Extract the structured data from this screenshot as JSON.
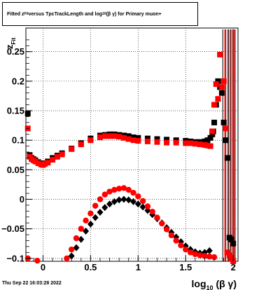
{
  "chart_data": {
    "type": "scatter",
    "title": "Fitted  z_Fit  versus TpcTrackLength and log_10(β γ) for Primary muon+",
    "title_parts": {
      "p1": "Fitted  z",
      "sub1": "Fit",
      "p2": "  versus TpcTrackLength and log",
      "sub2": "10",
      "p3": " (β  γ) for Primary muon+"
    },
    "xlabel": "log_10(β γ)",
    "xlabel_parts": {
      "base": "log",
      "sub": "10",
      "rest": " (β γ)"
    },
    "ylabel": "z_Fit",
    "ylabel_parts": {
      "base": "z",
      "sub": "Fit"
    },
    "xlim": [
      -0.18,
      2.05
    ],
    "ylim": [
      -0.105,
      0.29
    ],
    "xticks": [
      0,
      0.5,
      1,
      1.5,
      2
    ],
    "xtick_labels": [
      "0",
      "0.5",
      "1",
      "1.5",
      "2"
    ],
    "yticks": [
      -0.1,
      -0.05,
      0,
      0.05,
      0.1,
      0.15,
      0.2,
      0.25
    ],
    "ytick_labels": [
      "−0.1",
      "−0.05",
      "0",
      "0.05",
      "0.1",
      "0.15",
      "0.2",
      "0.25"
    ],
    "grid": true,
    "colors": {
      "black_series": "#000000",
      "red_series": "#ff0000"
    },
    "series": [
      {
        "color": "black",
        "upper_band": {
          "x": [
            -0.16,
            -0.14,
            -0.12,
            -0.1,
            -0.08,
            -0.05,
            -0.02,
            0.0,
            0.02,
            0.05,
            0.1,
            0.15,
            0.2,
            0.3,
            0.4,
            0.5,
            0.6,
            0.65,
            0.7,
            0.75,
            0.8,
            0.85,
            0.9,
            0.95,
            1.0,
            1.1,
            1.2,
            1.3,
            1.4,
            1.5,
            1.55,
            1.6,
            1.65,
            1.7,
            1.73,
            1.76,
            1.78,
            1.79
          ],
          "y": [
            0.145,
            0.075,
            0.07,
            0.068,
            0.066,
            0.063,
            0.061,
            0.06,
            0.061,
            0.064,
            0.07,
            0.074,
            0.078,
            0.086,
            0.095,
            0.103,
            0.108,
            0.109,
            0.11,
            0.11,
            0.109,
            0.108,
            0.107,
            0.105,
            0.104,
            0.103,
            0.102,
            0.101,
            0.1,
            0.099,
            0.098,
            0.097,
            0.097,
            0.098,
            0.1,
            0.104,
            0.11,
            0.115
          ]
        },
        "lower_band": {
          "x": [
            0.3,
            0.35,
            0.4,
            0.45,
            0.5,
            0.55,
            0.6,
            0.65,
            0.7,
            0.75,
            0.8,
            0.85,
            0.9,
            0.95,
            1.0,
            1.05,
            1.1,
            1.15,
            1.2,
            1.25,
            1.3,
            1.35,
            1.4,
            1.45,
            1.5,
            1.55,
            1.6,
            1.65,
            1.7,
            1.75
          ],
          "y": [
            -0.096,
            -0.082,
            -0.068,
            -0.054,
            -0.042,
            -0.031,
            -0.022,
            -0.014,
            -0.008,
            -0.004,
            -0.001,
            0.0,
            -0.001,
            -0.004,
            -0.008,
            -0.013,
            -0.019,
            -0.026,
            -0.033,
            -0.04,
            -0.048,
            -0.056,
            -0.064,
            -0.072,
            -0.079,
            -0.085,
            -0.089,
            -0.091,
            -0.09,
            -0.087
          ]
        },
        "tail": {
          "x": [
            1.78,
            1.8,
            1.82,
            1.84,
            1.86,
            1.88,
            1.9,
            1.92,
            1.94,
            1.96,
            1.98,
            2.0
          ],
          "y": [
            0.115,
            0.13,
            0.16,
            0.2,
            0.19,
            0.18,
            0.13,
            0.1,
            0.07,
            -0.065,
            -0.068,
            -0.075
          ]
        }
      },
      {
        "color": "red",
        "upper_band": {
          "x": [
            -0.16,
            -0.14,
            -0.12,
            -0.1,
            -0.08,
            -0.05,
            -0.02,
            0.0,
            0.02,
            0.05,
            0.1,
            0.15,
            0.2,
            0.3,
            0.4,
            0.5,
            0.6,
            0.65,
            0.7,
            0.75,
            0.8,
            0.85,
            0.9,
            0.95,
            1.0,
            1.1,
            1.2,
            1.3,
            1.4,
            1.5,
            1.55,
            1.6,
            1.65,
            1.7,
            1.73,
            1.76
          ],
          "y": [
            0.12,
            0.072,
            0.068,
            0.066,
            0.064,
            0.061,
            0.059,
            0.058,
            0.06,
            0.062,
            0.067,
            0.072,
            0.076,
            0.085,
            0.093,
            0.1,
            0.105,
            0.107,
            0.107,
            0.107,
            0.106,
            0.104,
            0.102,
            0.1,
            0.099,
            0.098,
            0.097,
            0.096,
            0.096,
            0.095,
            0.095,
            0.094,
            0.093,
            0.092,
            0.091,
            0.09
          ]
        },
        "lower_band": {
          "x": [
            0.25,
            0.3,
            0.35,
            0.4,
            0.45,
            0.5,
            0.55,
            0.6,
            0.65,
            0.7,
            0.75,
            0.8,
            0.85,
            0.9,
            0.95,
            1.0,
            1.05,
            1.1,
            1.15,
            1.2,
            1.25,
            1.3,
            1.35,
            1.4,
            1.45,
            1.5,
            1.55,
            1.6,
            1.65,
            1.7,
            1.75,
            1.8
          ],
          "y": [
            -0.1,
            -0.085,
            -0.066,
            -0.05,
            -0.036,
            -0.024,
            -0.011,
            -0.0,
            0.008,
            0.013,
            0.016,
            0.018,
            0.019,
            0.016,
            0.011,
            0.005,
            -0.003,
            -0.012,
            -0.021,
            -0.031,
            -0.041,
            -0.051,
            -0.061,
            -0.07,
            -0.078,
            -0.085,
            -0.09,
            -0.093,
            -0.095,
            -0.096,
            -0.097,
            -0.098
          ]
        },
        "tail": {
          "x": [
            1.78,
            1.8,
            1.82,
            1.84,
            1.86,
            1.88,
            1.9,
            1.92,
            1.94,
            1.96,
            1.98,
            2.0
          ],
          "y": [
            0.115,
            0.16,
            0.195,
            0.17,
            0.245,
            0.19,
            0.2,
            0.12,
            -0.09,
            -0.095,
            -0.1,
            -0.105
          ]
        },
        "left_low": {
          "x": [
            -0.16,
            -0.06
          ],
          "y": [
            -0.1,
            -0.104
          ]
        }
      }
    ]
  },
  "footer": {
    "timestamp": "Thu Sep 22 16:03:28 2022"
  }
}
